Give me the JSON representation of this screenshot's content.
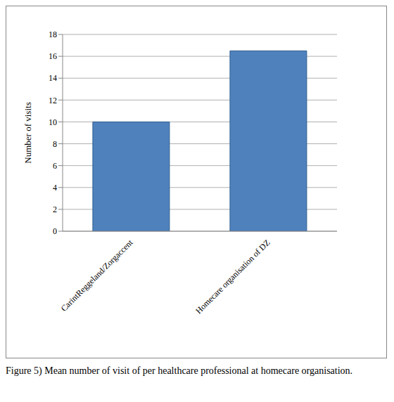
{
  "chart_data": {
    "type": "bar",
    "title": "Figure 5) Mean number of visit of per healthcare professional at homecare organisation.",
    "ylabel": "Number of visits",
    "categories": [
      "CarintReggeland/Zorgaccent",
      "Homecare organisation of DZ"
    ],
    "values": [
      10,
      16.5
    ],
    "color": "#4f81bd",
    "ylim": [
      0,
      18
    ],
    "yticks": [
      0,
      2,
      4,
      6,
      8,
      10,
      12,
      14,
      16,
      18
    ],
    "grid": true
  }
}
